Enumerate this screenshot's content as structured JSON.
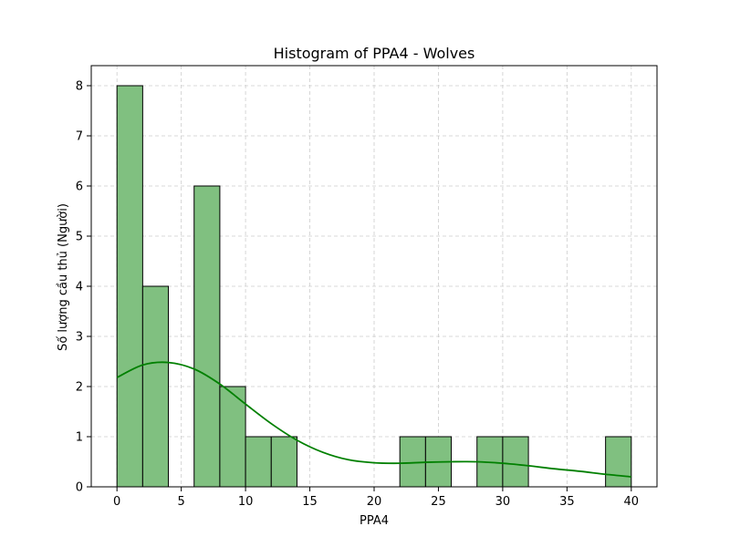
{
  "chart_data": {
    "type": "bar",
    "title": "Histogram of PPA4 - Wolves",
    "xlabel": "PPA4",
    "ylabel": "Số lượng cầu thủ (Người)",
    "xlim": [
      -2,
      42
    ],
    "ylim": [
      0,
      8.4
    ],
    "xticks": [
      0,
      5,
      10,
      15,
      20,
      25,
      30,
      35,
      40
    ],
    "yticks": [
      0,
      1,
      2,
      3,
      4,
      5,
      6,
      7,
      8
    ],
    "grid": true,
    "bar_color": "#80c080",
    "bar_edge_color": "#000000",
    "kde_color": "#008000",
    "bins": [
      {
        "x0": 0,
        "x1": 2,
        "count": 8
      },
      {
        "x0": 2,
        "x1": 4,
        "count": 4
      },
      {
        "x0": 4,
        "x1": 6,
        "count": 0
      },
      {
        "x0": 6,
        "x1": 8,
        "count": 6
      },
      {
        "x0": 8,
        "x1": 10,
        "count": 2
      },
      {
        "x0": 10,
        "x1": 12,
        "count": 1
      },
      {
        "x0": 12,
        "x1": 14,
        "count": 1
      },
      {
        "x0": 14,
        "x1": 16,
        "count": 0
      },
      {
        "x0": 16,
        "x1": 18,
        "count": 0
      },
      {
        "x0": 18,
        "x1": 20,
        "count": 0
      },
      {
        "x0": 20,
        "x1": 22,
        "count": 0
      },
      {
        "x0": 22,
        "x1": 24,
        "count": 1
      },
      {
        "x0": 24,
        "x1": 26,
        "count": 1
      },
      {
        "x0": 26,
        "x1": 28,
        "count": 0
      },
      {
        "x0": 28,
        "x1": 30,
        "count": 1
      },
      {
        "x0": 30,
        "x1": 32,
        "count": 1
      },
      {
        "x0": 32,
        "x1": 34,
        "count": 0
      },
      {
        "x0": 34,
        "x1": 36,
        "count": 0
      },
      {
        "x0": 36,
        "x1": 38,
        "count": 0
      },
      {
        "x0": 38,
        "x1": 40,
        "count": 1
      }
    ],
    "kde": {
      "x": [
        0,
        2,
        4,
        6,
        8,
        10,
        12,
        14,
        16,
        18,
        20,
        22,
        24,
        26,
        28,
        30,
        32,
        34,
        36,
        38,
        40
      ],
      "y": [
        2.18,
        2.43,
        2.48,
        2.35,
        2.05,
        1.65,
        1.26,
        0.93,
        0.69,
        0.54,
        0.48,
        0.47,
        0.49,
        0.5,
        0.5,
        0.47,
        0.42,
        0.36,
        0.31,
        0.25,
        0.2
      ]
    }
  }
}
